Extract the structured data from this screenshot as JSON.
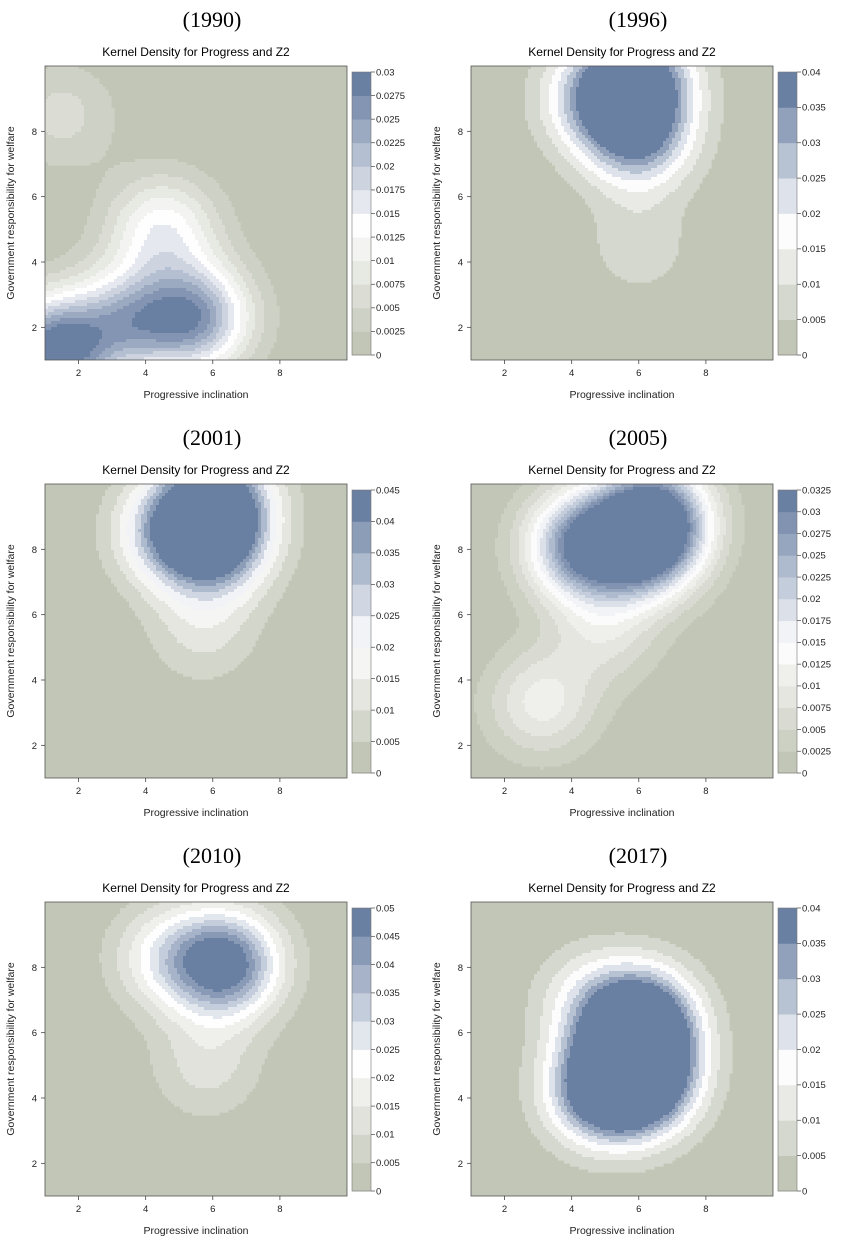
{
  "colors": {
    "low": "#c2c6b7",
    "mid": "#ffffff",
    "high": "#6a80a3",
    "frame": "#555555"
  },
  "chart_data": [
    {
      "type": "heatmap",
      "year_label": "(1990)",
      "title": "Kernel Density for Progress and Z2",
      "xlabel": "Progressive inclination",
      "ylabel": "Government responsibility for welfare",
      "xlim": [
        1,
        10
      ],
      "ylim": [
        1,
        10
      ],
      "x_ticks": [
        "2",
        "4",
        "6",
        "8"
      ],
      "y_ticks": [
        "2",
        "4",
        "6",
        "8"
      ],
      "legend_levels": [
        "0",
        "0.0025",
        "0.005",
        "0.0075",
        "0.01",
        "0.0125",
        "0.015",
        "0.0175",
        "0.02",
        "0.0225",
        "0.025",
        "0.0275",
        "0.03"
      ],
      "peaks": [
        {
          "x": 1.3,
          "y": 1.3,
          "density": 0.03
        },
        {
          "x": 5.5,
          "y": 2.3,
          "density": 0.024
        },
        {
          "x": 3.5,
          "y": 2.2,
          "density": 0.018
        },
        {
          "x": 4.5,
          "y": 5.0,
          "density": 0.014
        },
        {
          "x": 1.5,
          "y": 8.5,
          "density": 0.006
        }
      ]
    },
    {
      "type": "heatmap",
      "year_label": "(1996)",
      "title": "Kernel Density for Progress and Z2",
      "xlabel": "Progressive inclination",
      "ylabel": "Government responsibility for welfare",
      "xlim": [
        1,
        10
      ],
      "ylim": [
        1,
        10
      ],
      "x_ticks": [
        "2",
        "4",
        "6",
        "8"
      ],
      "y_ticks": [
        "2",
        "4",
        "6",
        "8"
      ],
      "legend_levels": [
        "0",
        "0.005",
        "0.01",
        "0.015",
        "0.02",
        "0.025",
        "0.03",
        "0.035",
        "0.04"
      ],
      "peaks": [
        {
          "x": 6.0,
          "y": 9.6,
          "density": 0.04
        },
        {
          "x": 6.0,
          "y": 7.8,
          "density": 0.031
        },
        {
          "x": 4.7,
          "y": 9.0,
          "density": 0.024
        },
        {
          "x": 6.0,
          "y": 4.5,
          "density": 0.008
        }
      ]
    },
    {
      "type": "heatmap",
      "year_label": "(2001)",
      "title": "Kernel Density for Progress and Z2",
      "xlabel": "Progressive inclination",
      "ylabel": "Government responsibility for welfare",
      "xlim": [
        1,
        10
      ],
      "ylim": [
        1,
        10
      ],
      "x_ticks": [
        "2",
        "4",
        "6",
        "8"
      ],
      "y_ticks": [
        "2",
        "4",
        "6",
        "8"
      ],
      "legend_levels": [
        "0",
        "0.005",
        "0.01",
        "0.015",
        "0.02",
        "0.025",
        "0.03",
        "0.035",
        "0.04",
        "0.045"
      ],
      "peaks": [
        {
          "x": 6.1,
          "y": 9.5,
          "density": 0.045
        },
        {
          "x": 6.1,
          "y": 8.1,
          "density": 0.036
        },
        {
          "x": 4.7,
          "y": 8.5,
          "density": 0.028
        },
        {
          "x": 5.7,
          "y": 5.5,
          "density": 0.011
        }
      ]
    },
    {
      "type": "heatmap",
      "year_label": "(2005)",
      "title": "Kernel Density for Progress and Z2",
      "xlabel": "Progressive inclination",
      "ylabel": "Government responsibility for welfare",
      "xlim": [
        1,
        10
      ],
      "ylim": [
        1,
        10
      ],
      "x_ticks": [
        "2",
        "4",
        "6",
        "8"
      ],
      "y_ticks": [
        "2",
        "4",
        "6",
        "8"
      ],
      "legend_levels": [
        "0",
        "0.0025",
        "0.005",
        "0.0075",
        "0.01",
        "0.0125",
        "0.015",
        "0.0175",
        "0.02",
        "0.0225",
        "0.025",
        "0.0275",
        "0.03",
        "0.0325"
      ],
      "peaks": [
        {
          "x": 6.2,
          "y": 8.2,
          "density": 0.032
        },
        {
          "x": 4.3,
          "y": 8.1,
          "density": 0.029
        },
        {
          "x": 6.5,
          "y": 9.2,
          "density": 0.022
        },
        {
          "x": 3.1,
          "y": 3.3,
          "density": 0.011
        },
        {
          "x": 5.0,
          "y": 5.5,
          "density": 0.008
        }
      ]
    },
    {
      "type": "heatmap",
      "year_label": "(2010)",
      "title": "Kernel Density for Progress and Z2",
      "xlabel": "Progressive inclination",
      "ylabel": "Government responsibility for welfare",
      "xlim": [
        1,
        10
      ],
      "ylim": [
        1,
        10
      ],
      "x_ticks": [
        "2",
        "4",
        "6",
        "8"
      ],
      "y_ticks": [
        "2",
        "4",
        "6",
        "8"
      ],
      "legend_levels": [
        "0",
        "0.005",
        "0.01",
        "0.015",
        "0.02",
        "0.025",
        "0.03",
        "0.035",
        "0.04",
        "0.045",
        "0.05"
      ],
      "peaks": [
        {
          "x": 6.4,
          "y": 8.1,
          "density": 0.05
        },
        {
          "x": 4.6,
          "y": 8.3,
          "density": 0.02
        },
        {
          "x": 5.8,
          "y": 5.0,
          "density": 0.012
        }
      ]
    },
    {
      "type": "heatmap",
      "year_label": "(2017)",
      "title": "Kernel Density for Progress and Z2",
      "xlabel": "Progressive inclination",
      "ylabel": "Government responsibility for welfare",
      "xlim": [
        1,
        10
      ],
      "ylim": [
        1,
        10
      ],
      "x_ticks": [
        "2",
        "4",
        "6",
        "8"
      ],
      "y_ticks": [
        "2",
        "4",
        "6",
        "8"
      ],
      "legend_levels": [
        "0",
        "0.005",
        "0.01",
        "0.015",
        "0.02",
        "0.025",
        "0.03",
        "0.035",
        "0.04"
      ],
      "peaks": [
        {
          "x": 6.1,
          "y": 4.4,
          "density": 0.038
        },
        {
          "x": 6.1,
          "y": 6.5,
          "density": 0.036
        },
        {
          "x": 4.8,
          "y": 4.2,
          "density": 0.036
        },
        {
          "x": 6.0,
          "y": 5.5,
          "density": 0.03
        },
        {
          "x": 4.5,
          "y": 7.0,
          "density": 0.014
        }
      ]
    }
  ]
}
